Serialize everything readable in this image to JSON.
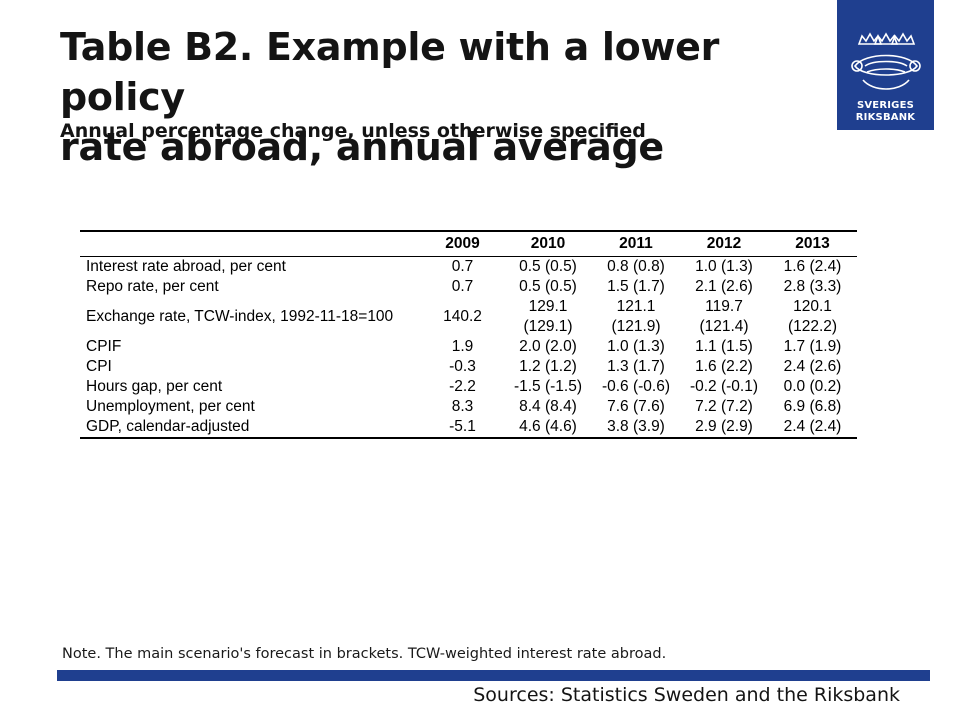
{
  "header": {
    "title_line1": "Table B2. Example with a lower policy",
    "title_line2": "rate abroad, annual average",
    "subtitle": "Annual percentage change, unless otherwise specified"
  },
  "logo": {
    "text_line1": "SVERIGES",
    "text_line2": "RIKSBANK"
  },
  "table": {
    "columns": [
      "",
      "2009",
      "2010",
      "2011",
      "2012",
      "2013"
    ],
    "rows": [
      {
        "label": "Interest rate abroad, per cent",
        "values": [
          "0.7",
          "0.5 (0.5)",
          "0.8 (0.8)",
          "1.0 (1.3)",
          "1.6 (2.4)"
        ]
      },
      {
        "label": "Repo rate, per cent",
        "values": [
          "0.7",
          "0.5 (0.5)",
          "1.5 (1.7)",
          "2.1 (2.6)",
          "2.8 (3.3)"
        ]
      },
      {
        "label": "Exchange rate, TCW-index, 1992-11-18=100",
        "values": [
          "140.2",
          "129.1 (129.1)",
          "121.1 (121.9)",
          "119.7 (121.4)",
          "120.1 (122.2)"
        ]
      },
      {
        "label": "CPIF",
        "values": [
          "1.9",
          "2.0 (2.0)",
          "1.0 (1.3)",
          "1.1 (1.5)",
          "1.7 (1.9)"
        ]
      },
      {
        "label": "CPI",
        "values": [
          "-0.3",
          "1.2 (1.2)",
          "1.3 (1.7)",
          "1.6 (2.2)",
          "2.4 (2.6)"
        ]
      },
      {
        "label": "Hours gap, per cent",
        "values": [
          "-2.2",
          "-1.5 (-1.5)",
          "-0.6 (-0.6)",
          "-0.2 (-0.1)",
          "0.0 (0.2)"
        ]
      },
      {
        "label": "Unemployment, per cent",
        "values": [
          "8.3",
          "8.4 (8.4)",
          "7.6 (7.6)",
          "7.2 (7.2)",
          "6.9 (6.8)"
        ]
      },
      {
        "label": "GDP, calendar-adjusted",
        "values": [
          "-5.1",
          "4.6 (4.6)",
          "3.8 (3.9)",
          "2.9 (2.9)",
          "2.4 (2.4)"
        ]
      }
    ]
  },
  "footer": {
    "note": "Note. The main scenario's forecast in brackets. TCW-weighted interest rate abroad.",
    "sources": "Sources: Statistics Sweden and the Riksbank"
  },
  "colors": {
    "brand_blue": "#1f3f8f"
  }
}
